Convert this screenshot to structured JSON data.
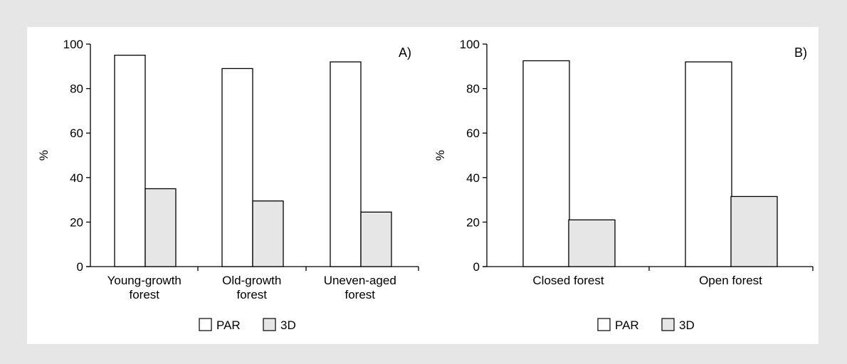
{
  "colors": {
    "background": "#e6e6e6",
    "panel": "#ffffff",
    "PAR": "#ffffff",
    "3D": "#e6e6e6",
    "stroke": "#000000"
  },
  "chart_data": [
    {
      "type": "bar",
      "panel_label": "A)",
      "ylabel": "%",
      "ylim": [
        0,
        100
      ],
      "yticks": [
        0,
        20,
        40,
        60,
        80,
        100
      ],
      "categories": [
        [
          "Young-growth",
          "forest"
        ],
        [
          "Old-growth",
          "forest"
        ],
        [
          "Uneven-aged",
          "forest"
        ]
      ],
      "series": [
        {
          "name": "PAR",
          "values": [
            95,
            89,
            92
          ]
        },
        {
          "name": "3D",
          "values": [
            35,
            29.5,
            24.5
          ]
        }
      ],
      "legend": {
        "position": "bottom-center",
        "entries": [
          "PAR",
          "3D"
        ]
      }
    },
    {
      "type": "bar",
      "panel_label": "B)",
      "ylabel": "%",
      "ylim": [
        0,
        100
      ],
      "yticks": [
        0,
        20,
        40,
        60,
        80,
        100
      ],
      "categories": [
        [
          "Closed forest"
        ],
        [
          "Open forest"
        ]
      ],
      "series": [
        {
          "name": "PAR",
          "values": [
            92.5,
            92
          ]
        },
        {
          "name": "3D",
          "values": [
            21,
            31.5
          ]
        }
      ],
      "legend": {
        "position": "bottom-center",
        "entries": [
          "PAR",
          "3D"
        ]
      }
    }
  ]
}
